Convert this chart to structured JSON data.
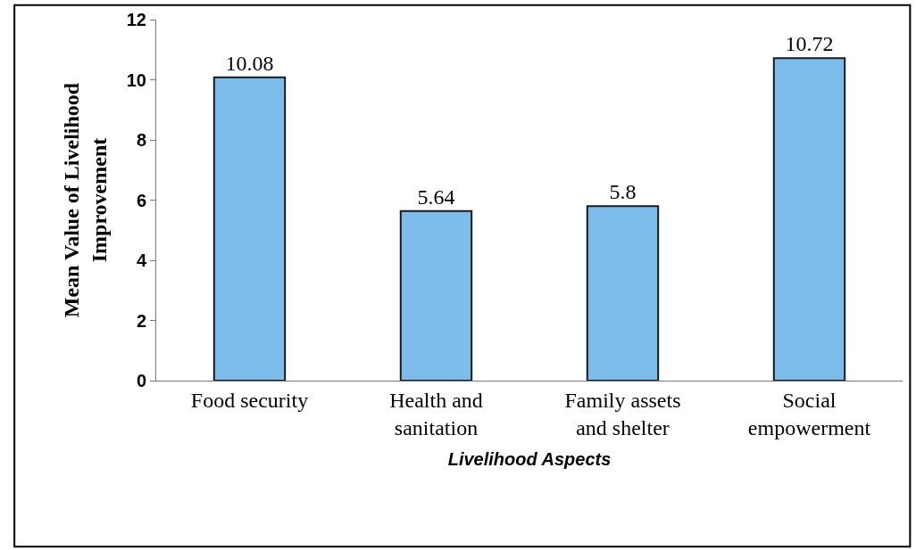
{
  "chart_data": {
    "type": "bar",
    "xlabel": "Livelihood Aspects",
    "ylabel": "Mean Value of Livelihood Improvement",
    "categories": [
      "Food security",
      "Health and sanitation",
      "Family assets and shelter",
      "Social empowerment"
    ],
    "values": [
      10.08,
      5.64,
      5.8,
      10.72
    ],
    "color": "#7cbcea",
    "ylim": [
      0,
      12
    ],
    "yticks": [
      0,
      2,
      4,
      6,
      8,
      10,
      12
    ],
    "legend": false,
    "data_labels": true
  }
}
